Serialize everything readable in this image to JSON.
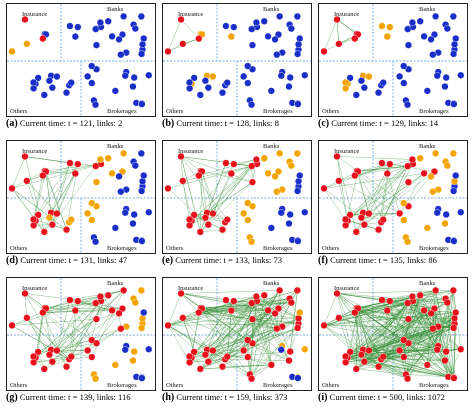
{
  "region_labels": {
    "insurance": "Insurance",
    "banks": "Banks",
    "others": "Others",
    "brokerages": "Brokerages"
  },
  "colors": {
    "infected": "#e8111b",
    "recovered": "#f4a300",
    "susceptible": "#1a2fc8",
    "link": "#2e8b2e",
    "divider": "#4a8fd6"
  },
  "panels": [
    {
      "letter": "(a)",
      "text": "Current time: t = 121, links: 2"
    },
    {
      "letter": "(b)",
      "text": "Current time: t = 128, links: 8"
    },
    {
      "letter": "(c)",
      "text": "Current time: t = 129, links: 14"
    },
    {
      "letter": "(d)",
      "text": "Current time: t = 131, links: 47"
    },
    {
      "letter": "(e)",
      "text": "Current time: t = 133, links: 73"
    },
    {
      "letter": "(f)",
      "text": "Current time: t = 135, links: 86"
    },
    {
      "letter": "(g)",
      "text": "Current time: t = 139, links: 116"
    },
    {
      "letter": "(h)",
      "text": "Current time: t = 159, links: 373"
    },
    {
      "letter": "(i)",
      "text": "Current time: t = 500, links: 1072"
    }
  ]
}
